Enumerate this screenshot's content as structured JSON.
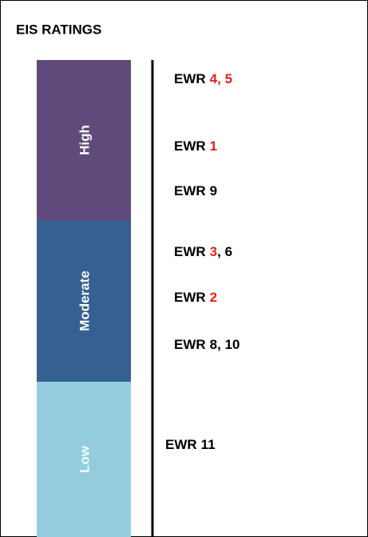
{
  "title": "EIS RATINGS",
  "levels": [
    {
      "label": "High",
      "color": "#604a7b",
      "text_color": "#ffffff"
    },
    {
      "label": "Moderate",
      "color": "#366092",
      "text_color": "#ffffff"
    },
    {
      "label": "Low",
      "color": "#93cddd",
      "text_color": "#f2f9fb"
    }
  ],
  "entries": [
    {
      "segments": [
        {
          "text": "EWR",
          "color": "#000000"
        },
        {
          "text": "4, 5",
          "color": "#e3231b"
        }
      ]
    },
    {
      "segments": [
        {
          "text": "EWR",
          "color": "#000000"
        },
        {
          "text": "1",
          "color": "#e3231b"
        }
      ]
    },
    {
      "segments": [
        {
          "text": "EWR",
          "color": "#000000"
        },
        {
          "text": "9",
          "color": "#000000"
        }
      ]
    },
    {
      "segments": [
        {
          "text": "EWR",
          "color": "#000000"
        },
        {
          "text": "3",
          "color": "#e3231b"
        },
        {
          "text": ", 6",
          "color": "#000000"
        }
      ]
    },
    {
      "segments": [
        {
          "text": "EWR",
          "color": "#000000"
        },
        {
          "text": "2",
          "color": "#e3231b"
        }
      ]
    },
    {
      "segments": [
        {
          "text": "EWR",
          "color": "#000000"
        },
        {
          "text": "8, 10",
          "color": "#000000"
        }
      ]
    },
    {
      "segments": [
        {
          "text": "EWR",
          "color": "#000000"
        },
        {
          "text": "11",
          "color": "#000000"
        }
      ]
    }
  ]
}
